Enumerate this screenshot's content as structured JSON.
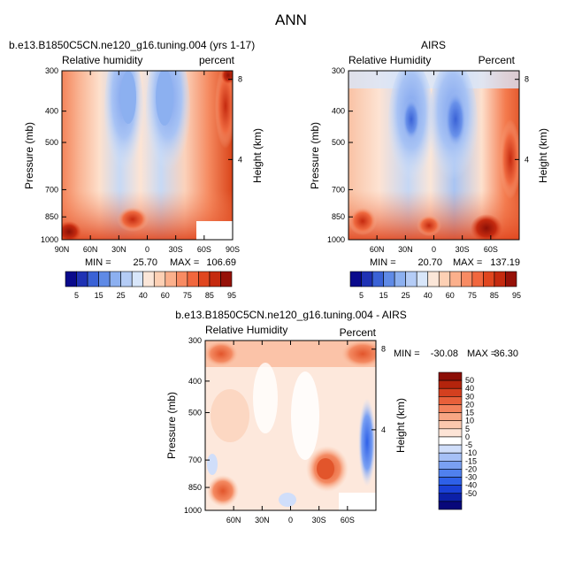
{
  "figure": {
    "title": "ANN"
  },
  "colors": {
    "abs_scale": [
      "#0a0a8c",
      "#1f32b4",
      "#3a62d6",
      "#5f8ae6",
      "#8cb0f0",
      "#b4ccf6",
      "#d8e6fa",
      "#fbe6d8",
      "#fdd0b4",
      "#fbb08c",
      "#f88b63",
      "#f1673e",
      "#e0461f",
      "#c52a0f",
      "#961108"
    ],
    "diff_scale": [
      "#08087a",
      "#0c20a8",
      "#1a40d6",
      "#2e60e8",
      "#5080ee",
      "#7aa0f2",
      "#a6c0f6",
      "#d0defa",
      "#ffffff",
      "#fde4d6",
      "#fbc8ae",
      "#f8a684",
      "#f3825c",
      "#e8603a",
      "#d4401f",
      "#b4240c",
      "#8c0e06"
    ]
  },
  "chart_data": [
    {
      "id": "model",
      "type": "heatmap",
      "title": "b.e13.B1850C5CN.ne120_g16.tuning.004 (yrs 1-17)",
      "left_label": "Relative humidity",
      "right_label": "percent",
      "ylabel": "Pressure (mb)",
      "y2label": "Height (km)",
      "x_ticks": [
        "90N",
        "60N",
        "30N",
        "0",
        "30S",
        "60S",
        "90S"
      ],
      "y_ticks": [
        "300",
        "400",
        "500",
        "700",
        "850",
        "1000"
      ],
      "y2_ticks": [
        "8",
        "4"
      ],
      "xlim": [
        90,
        -90
      ],
      "ylim": [
        1000,
        300
      ],
      "min_label": "MIN =",
      "min": "25.70",
      "max_label": "MAX =",
      "max": "106.69"
    },
    {
      "id": "obs",
      "type": "heatmap",
      "title": "AIRS",
      "left_label": "Relative Humidity",
      "right_label": "Percent",
      "ylabel": "Pressure (mb)",
      "y2label": "Height (km)",
      "x_ticks": [
        "60N",
        "30N",
        "0",
        "30S",
        "60S"
      ],
      "y_ticks": [
        "300",
        "400",
        "500",
        "700",
        "850",
        "1000"
      ],
      "y2_ticks": [
        "8",
        "4"
      ],
      "xlim": [
        90,
        -90
      ],
      "ylim": [
        1000,
        300
      ],
      "min_label": "MIN =",
      "min": "20.70",
      "max_label": "MAX =",
      "max": "137.19"
    },
    {
      "id": "diff",
      "type": "heatmap",
      "title": "b.e13.B1850C5CN.ne120_g16.tuning.004 - AIRS",
      "left_label": "Relative Humidity",
      "right_label": "Percent",
      "ylabel": "Pressure (mb)",
      "y2label": "Height (km)",
      "x_ticks": [
        "60N",
        "30N",
        "0",
        "30S",
        "60S"
      ],
      "y_ticks": [
        "300",
        "400",
        "500",
        "700",
        "850",
        "1000"
      ],
      "y2_ticks": [
        "8",
        "4"
      ],
      "xlim": [
        90,
        -90
      ],
      "ylim": [
        1000,
        300
      ],
      "min_label": "MIN =",
      "min": "-30.08",
      "max_label": "MAX =",
      "max": "36.30"
    }
  ],
  "colorbars": {
    "absolute": {
      "labels": [
        "5",
        "15",
        "25",
        "40",
        "60",
        "75",
        "85",
        "95"
      ]
    },
    "difference": {
      "labels": [
        "50",
        "40",
        "30",
        "20",
        "15",
        "10",
        "5",
        "0",
        "-5",
        "-10",
        "-15",
        "-20",
        "-30",
        "-40",
        "-50"
      ]
    }
  }
}
